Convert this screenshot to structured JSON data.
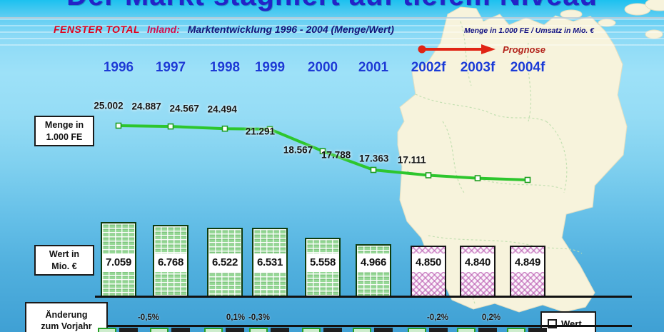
{
  "title": "Der Markt stagniert auf tiefem Niveau",
  "header": {
    "brand": "FENSTER TOTAL",
    "scope": "Inland:",
    "subtitle": "Marktentwicklung 1996 - 2004 (Menge/Wert)",
    "units_note": "Menge in 1.000 FE / Umsatz in Mio. €",
    "prognose_label": "Prognose"
  },
  "labels": {
    "menge_box": [
      "Menge in",
      "1.000 FE"
    ],
    "wert_box": [
      "Wert in",
      "Mio. €"
    ],
    "change_box": [
      "Änderung",
      "zum Vorjahr"
    ],
    "legend_wert": "Wert"
  },
  "colors": {
    "title_blue": "#2323c8",
    "brand_red": "#e0001c",
    "year_blue": "#1b3bd6",
    "line_green": "#2dc62d",
    "forecast_pink": "#ba5ab0",
    "prognose_red": "#e02414",
    "map_cream": "#f7f3dc"
  },
  "chart_data": {
    "type": "line+bar",
    "categories": [
      "1996",
      "1997",
      "1998",
      "1999",
      "2000",
      "2001",
      "2002f",
      "2003f",
      "2004f"
    ],
    "forecast_categories": [
      "2002f",
      "2003f",
      "2004f"
    ],
    "series": [
      {
        "name": "Menge in 1.000 FE",
        "type": "line",
        "values": [
          25002,
          24887,
          24567,
          24494,
          21291,
          18567,
          17788,
          17363,
          17111
        ],
        "labels": [
          "25.002",
          "24.887",
          "24.567",
          "24.494",
          "21.291",
          "18.567",
          "17.788",
          "17.363",
          "17.111"
        ]
      },
      {
        "name": "Wert in Mio. €",
        "type": "bar",
        "values": [
          7059,
          6768,
          6522,
          6531,
          5558,
          4966,
          4850,
          4840,
          4849
        ],
        "labels": [
          "7.059",
          "6.768",
          "6.522",
          "6.531",
          "5.558",
          "4.966",
          "4.850",
          "4.840",
          "4.849"
        ]
      }
    ],
    "change_row": {
      "label": "Änderung zum Vorjahr",
      "items": [
        {
          "text": "-0,5%",
          "x": 208
        },
        {
          "text": "0,1%",
          "x": 330
        },
        {
          "text": "-0,3%",
          "x": 363
        },
        {
          "text": "-0,2%",
          "x": 613
        },
        {
          "text": "0,2%",
          "x": 688
        }
      ]
    },
    "legend": [
      "Wert"
    ],
    "ylim_line": [
      0,
      26000
    ],
    "ylim_bar": [
      0,
      7500
    ],
    "grid": false,
    "legend_position": "bottom-right"
  }
}
